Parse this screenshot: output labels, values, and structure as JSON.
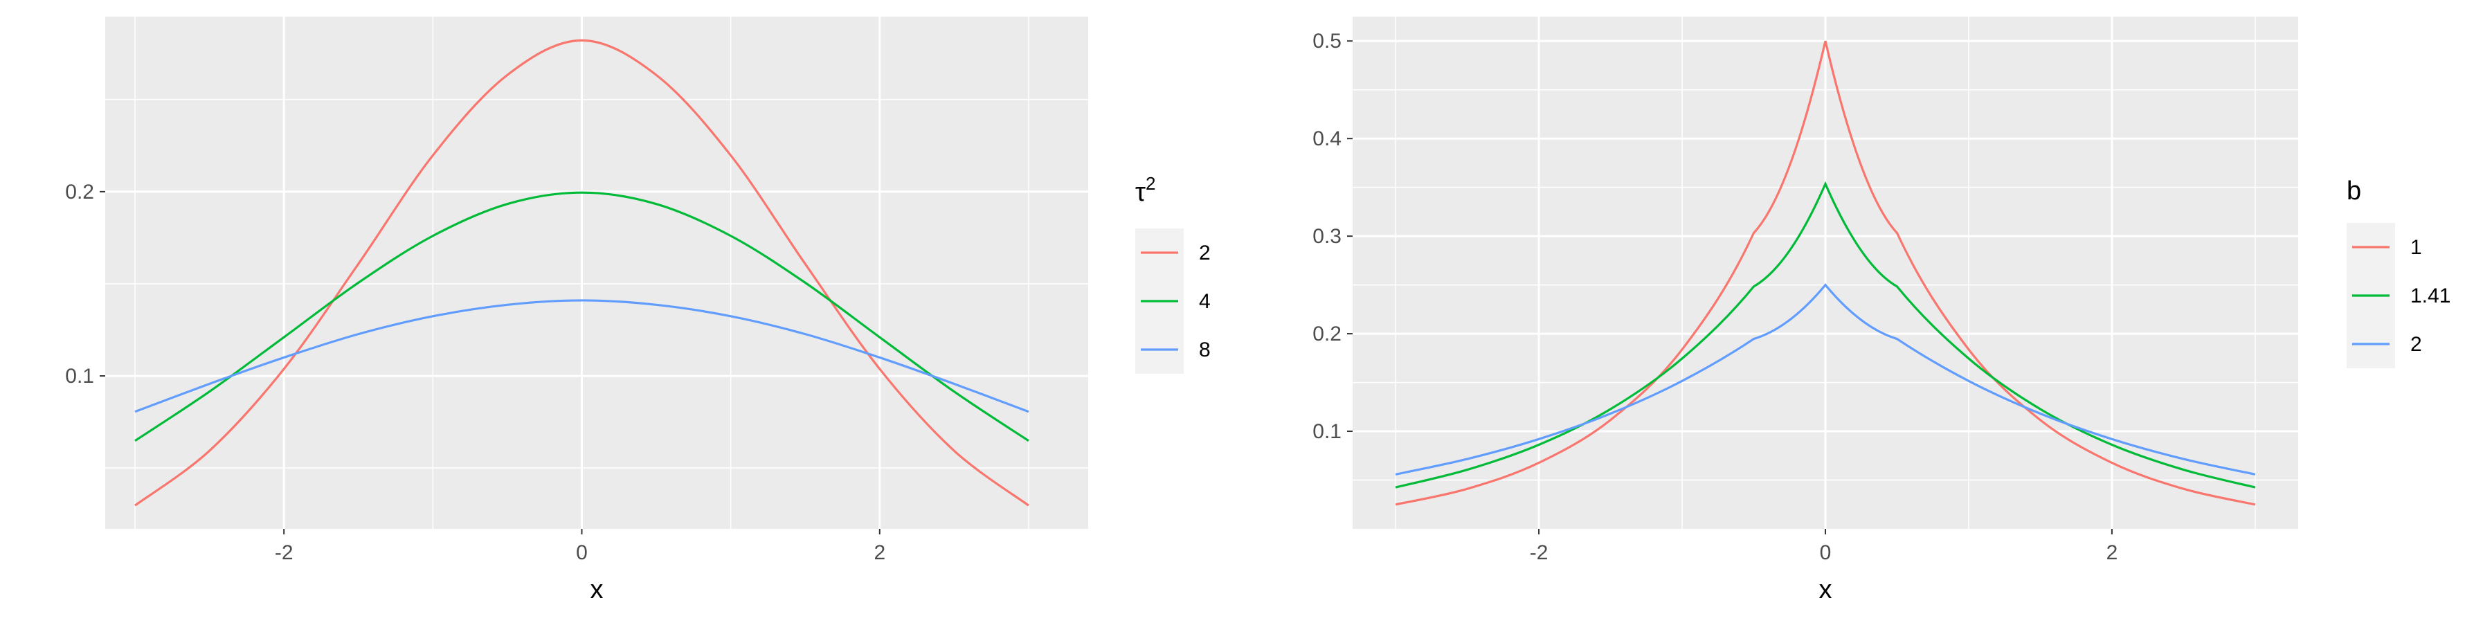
{
  "chart_data": [
    {
      "type": "line",
      "title": "",
      "xlabel": "x",
      "ylabel": "",
      "xlim": [
        -3.2,
        3.4
      ],
      "ylim": [
        0.017,
        0.295
      ],
      "x_ticks": [
        -2,
        0,
        2
      ],
      "x_tick_labels": [
        "-2",
        "0",
        "2"
      ],
      "y_ticks": [
        0.1,
        0.2
      ],
      "y_tick_labels": [
        "0.1",
        "0.2"
      ],
      "grid": true,
      "legend": {
        "title_base": "τ",
        "title_sup": "2",
        "placement": "right"
      },
      "x": [
        -3.0,
        -2.5,
        -2.0,
        -1.5,
        -1.0,
        -0.5,
        0.0,
        0.5,
        1.0,
        1.5,
        2.0,
        2.5,
        3.0
      ],
      "series": [
        {
          "name": "2",
          "color": "#F8766D",
          "values": [
            0.0297,
            0.0594,
            0.1038,
            0.1608,
            0.2197,
            0.2633,
            0.2821,
            0.2633,
            0.2197,
            0.1608,
            0.1038,
            0.0594,
            0.0297
          ]
        },
        {
          "name": "4",
          "color": "#00BA38",
          "values": [
            0.0648,
            0.0915,
            0.121,
            0.1506,
            0.176,
            0.1933,
            0.1995,
            0.1933,
            0.176,
            0.1506,
            0.121,
            0.0915,
            0.0648
          ]
        },
        {
          "name": "8",
          "color": "#619CFF",
          "values": [
            0.0806,
            0.0957,
            0.11,
            0.1227,
            0.1324,
            0.1386,
            0.141,
            0.1386,
            0.1324,
            0.1227,
            0.11,
            0.0957,
            0.0806
          ]
        }
      ]
    },
    {
      "type": "line",
      "title": "",
      "xlabel": "x",
      "ylabel": "",
      "xlim": [
        -3.3,
        3.3
      ],
      "ylim": [
        0.0,
        0.525
      ],
      "x_ticks": [
        -2,
        0,
        2
      ],
      "x_tick_labels": [
        "-2",
        "0",
        "2"
      ],
      "y_ticks": [
        0.1,
        0.2,
        0.3,
        0.4,
        0.5
      ],
      "y_tick_labels": [
        "0.1",
        "0.2",
        "0.3",
        "0.4",
        "0.5"
      ],
      "grid": true,
      "legend": {
        "title_base": "b",
        "title_sup": "",
        "placement": "right"
      },
      "x": [
        -3.0,
        -2.5,
        -2.0,
        -1.5,
        -1.0,
        -0.5,
        0.0,
        0.5,
        1.0,
        1.5,
        2.0,
        2.5,
        3.0
      ],
      "series": [
        {
          "name": "1",
          "color": "#F8766D",
          "values": [
            0.0249,
            0.041,
            0.0677,
            0.1116,
            0.1839,
            0.3033,
            0.5,
            0.3033,
            0.1839,
            0.1116,
            0.0677,
            0.041,
            0.0249
          ]
        },
        {
          "name": "1.41",
          "color": "#00BA38",
          "values": [
            0.0425,
            0.0606,
            0.0862,
            0.1227,
            0.1746,
            0.2484,
            0.3536,
            0.2484,
            0.1746,
            0.1227,
            0.0862,
            0.0606,
            0.0425
          ]
        },
        {
          "name": "2",
          "color": "#619CFF",
          "values": [
            0.0558,
            0.0716,
            0.092,
            0.1181,
            0.1516,
            0.1947,
            0.25,
            0.1947,
            0.1516,
            0.1181,
            0.092,
            0.0716,
            0.0558
          ]
        }
      ]
    }
  ]
}
